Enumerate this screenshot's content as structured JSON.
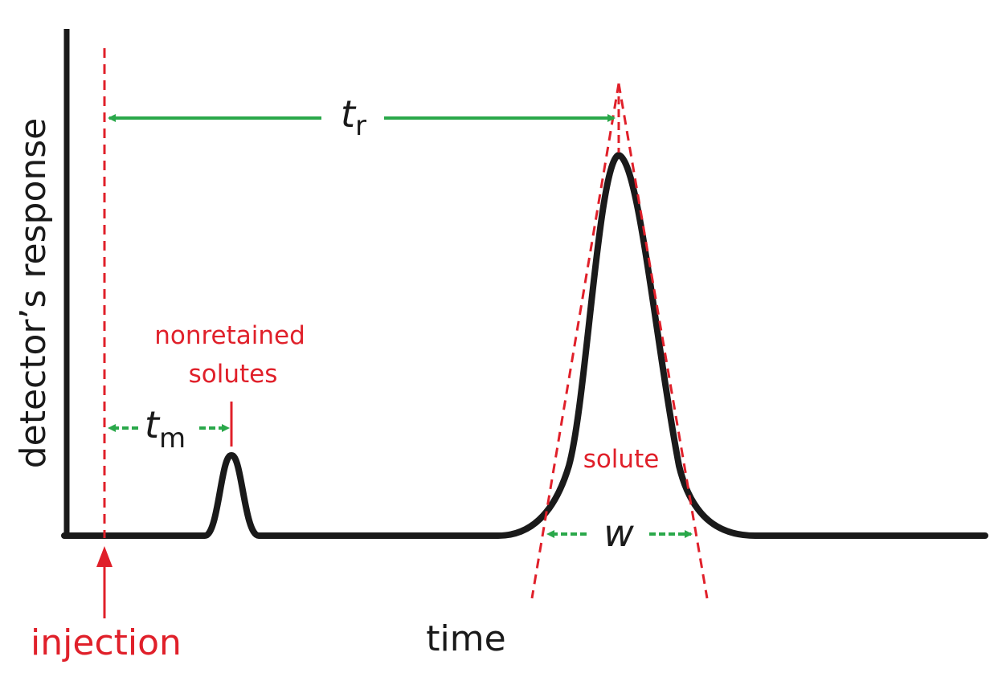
{
  "axes": {
    "xlabel": "time",
    "ylabel": "detector’s response"
  },
  "annotations": {
    "injection": "injection",
    "nonretained_line1": "nonretained",
    "nonretained_line2": "solutes",
    "solute": "solute",
    "tr_symbol": "t",
    "tr_subscript": "r",
    "tm_symbol": "t",
    "tm_subscript": "m",
    "w_symbol": "w"
  },
  "colors": {
    "curve": "#1a1a1a",
    "red_guides": "#e0202a",
    "green_arrows": "#2aa84a"
  }
}
